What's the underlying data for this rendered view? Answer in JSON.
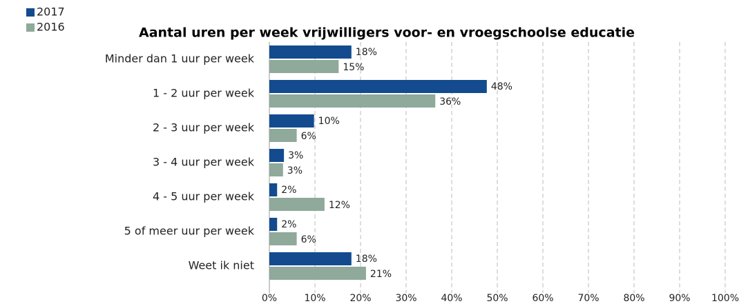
{
  "chart_data": {
    "type": "bar",
    "orientation": "horizontal",
    "title": "Aantal uren per week vrijwilligers voor- en vroegschoolse educatie",
    "categories": [
      "Minder dan 1 uur per week",
      "1 - 2 uur per week",
      "2 - 3 uur per week",
      "3 - 4 uur per week",
      "4 - 5 uur per week",
      "5 of meer uur per week",
      "Weet ik niet"
    ],
    "series": [
      {
        "name": "2017",
        "color": "#134b8e",
        "values": [
          18,
          47.7,
          9.8,
          3.2,
          1.7,
          1.7,
          18
        ],
        "value_labels": [
          "18%",
          "48%",
          "10%",
          "3%",
          "2%",
          "2%",
          "18%"
        ]
      },
      {
        "name": "2016",
        "color": "#8fa99b",
        "values": [
          15.2,
          36.4,
          6,
          3,
          12.1,
          6,
          21.2
        ],
        "value_labels": [
          "15%",
          "36%",
          "6%",
          "3%",
          "12%",
          "6%",
          "21%"
        ]
      }
    ],
    "xlim": [
      0,
      100
    ],
    "xticks": [
      {
        "value": 0,
        "label": "0%"
      },
      {
        "value": 10,
        "label": "10%"
      },
      {
        "value": 20,
        "label": "20%"
      },
      {
        "value": 30,
        "label": "30%"
      },
      {
        "value": 40,
        "label": "40%"
      },
      {
        "value": 50,
        "label": "50%"
      },
      {
        "value": 60,
        "label": "60%"
      },
      {
        "value": 70,
        "label": "70%"
      },
      {
        "value": 80,
        "label": "80%"
      },
      {
        "value": 90,
        "label": "90%"
      },
      {
        "value": 100,
        "label": "100%"
      }
    ],
    "grid": true,
    "legend": "top-left"
  }
}
